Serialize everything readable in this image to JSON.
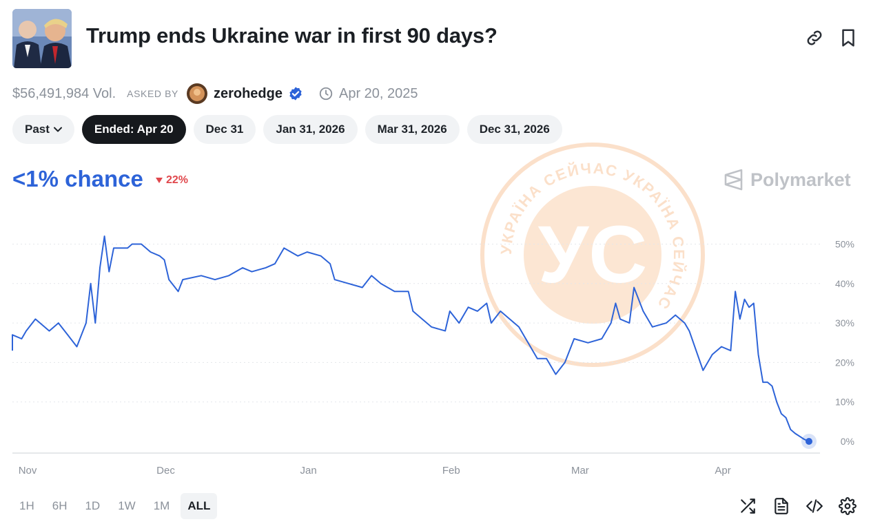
{
  "market": {
    "title": "Trump ends Ukraine war in first 90 days?",
    "volume": "$56,491,984 Vol.",
    "asked_by_label": "ASKED BY",
    "author": "zerohedge",
    "end_date": "Apr 20, 2025"
  },
  "outcome_pills": [
    {
      "label": "Past",
      "active": false
    },
    {
      "label": "Ended: Apr 20",
      "active": true
    },
    {
      "label": "Dec 31",
      "active": false
    },
    {
      "label": "Jan 31, 2026",
      "active": false
    },
    {
      "label": "Mar 31, 2026",
      "active": false
    },
    {
      "label": "Dec 31, 2026",
      "active": false
    }
  ],
  "chance_text": "<1% chance",
  "change_text": "22%",
  "brand": "Polymarket",
  "watermark": {
    "letters": "УС",
    "ring_text": "УКРАЇНА СЕЙЧАС УКРАЇНА СЕЙЧАС "
  },
  "time_ranges": [
    {
      "label": "1H",
      "active": false
    },
    {
      "label": "6H",
      "active": false
    },
    {
      "label": "1D",
      "active": false
    },
    {
      "label": "1W",
      "active": false
    },
    {
      "label": "1M",
      "active": false
    },
    {
      "label": "ALL",
      "active": true
    }
  ],
  "colors": {
    "line": "#2d63d8",
    "accent": "#2d63d8",
    "down": "#e0474c",
    "watermark": "#f5a05c"
  },
  "chart_data": {
    "type": "line",
    "title": "",
    "xlabel": "",
    "ylabel": "",
    "x_tick_labels": [
      "Nov",
      "Dec",
      "Jan",
      "Feb",
      "Mar",
      "Apr"
    ],
    "x_range": [
      "2024-10-29",
      "2025-04-20"
    ],
    "y_tick_labels": [
      "50%",
      "40%",
      "30%",
      "20%",
      "10%",
      "0%"
    ],
    "y_ticks": [
      50,
      40,
      30,
      20,
      10,
      0
    ],
    "ylim": [
      0,
      53
    ],
    "grid": true,
    "series": [
      {
        "name": "",
        "points": [
          [
            "2024-10-29",
            23
          ],
          [
            "2024-10-29",
            27
          ],
          [
            "2024-10-31",
            26
          ],
          [
            "2024-11-01",
            28
          ],
          [
            "2024-11-03",
            31
          ],
          [
            "2024-11-04",
            30
          ],
          [
            "2024-11-06",
            28
          ],
          [
            "2024-11-08",
            30
          ],
          [
            "2024-11-10",
            27
          ],
          [
            "2024-11-12",
            24
          ],
          [
            "2024-11-14",
            30
          ],
          [
            "2024-11-15",
            40
          ],
          [
            "2024-11-16",
            30
          ],
          [
            "2024-11-17",
            44
          ],
          [
            "2024-11-18",
            52
          ],
          [
            "2024-11-19",
            43
          ],
          [
            "2024-11-20",
            49
          ],
          [
            "2024-11-23",
            49
          ],
          [
            "2024-11-24",
            50
          ],
          [
            "2024-11-26",
            50
          ],
          [
            "2024-11-28",
            48
          ],
          [
            "2024-11-30",
            47
          ],
          [
            "2024-12-01",
            46
          ],
          [
            "2024-12-02",
            41
          ],
          [
            "2024-12-04",
            38
          ],
          [
            "2024-12-05",
            41
          ],
          [
            "2024-12-09",
            42
          ],
          [
            "2024-12-12",
            41
          ],
          [
            "2024-12-15",
            42
          ],
          [
            "2024-12-18",
            44
          ],
          [
            "2024-12-20",
            43
          ],
          [
            "2024-12-23",
            44
          ],
          [
            "2024-12-25",
            45
          ],
          [
            "2024-12-27",
            49
          ],
          [
            "2024-12-30",
            47
          ],
          [
            "2025-01-01",
            48
          ],
          [
            "2025-01-04",
            47
          ],
          [
            "2025-01-06",
            45
          ],
          [
            "2025-01-07",
            41
          ],
          [
            "2025-01-10",
            40
          ],
          [
            "2025-01-13",
            39
          ],
          [
            "2025-01-15",
            42
          ],
          [
            "2025-01-17",
            40
          ],
          [
            "2025-01-20",
            38
          ],
          [
            "2025-01-23",
            38
          ],
          [
            "2025-01-24",
            33
          ],
          [
            "2025-01-26",
            31
          ],
          [
            "2025-01-28",
            29
          ],
          [
            "2025-01-31",
            28
          ],
          [
            "2025-02-01",
            33
          ],
          [
            "2025-02-03",
            30
          ],
          [
            "2025-02-05",
            34
          ],
          [
            "2025-02-07",
            33
          ],
          [
            "2025-02-09",
            35
          ],
          [
            "2025-02-10",
            30
          ],
          [
            "2025-02-12",
            33
          ],
          [
            "2025-02-14",
            31
          ],
          [
            "2025-02-16",
            29
          ],
          [
            "2025-02-18",
            25
          ],
          [
            "2025-02-20",
            21
          ],
          [
            "2025-02-22",
            21
          ],
          [
            "2025-02-24",
            17
          ],
          [
            "2025-02-26",
            20
          ],
          [
            "2025-02-28",
            26
          ],
          [
            "2025-03-03",
            25
          ],
          [
            "2025-03-06",
            26
          ],
          [
            "2025-03-08",
            30
          ],
          [
            "2025-03-09",
            35
          ],
          [
            "2025-03-10",
            31
          ],
          [
            "2025-03-12",
            30
          ],
          [
            "2025-03-13",
            39
          ],
          [
            "2025-03-15",
            33
          ],
          [
            "2025-03-17",
            29
          ],
          [
            "2025-03-20",
            30
          ],
          [
            "2025-03-22",
            32
          ],
          [
            "2025-03-24",
            30
          ],
          [
            "2025-03-25",
            28
          ],
          [
            "2025-03-28",
            18
          ],
          [
            "2025-03-30",
            22
          ],
          [
            "2025-04-01",
            24
          ],
          [
            "2025-04-03",
            23
          ],
          [
            "2025-04-04",
            38
          ],
          [
            "2025-04-05",
            31
          ],
          [
            "2025-04-06",
            36
          ],
          [
            "2025-04-07",
            34
          ],
          [
            "2025-04-08",
            35
          ],
          [
            "2025-04-09",
            22
          ],
          [
            "2025-04-10",
            15
          ],
          [
            "2025-04-11",
            15
          ],
          [
            "2025-04-12",
            14
          ],
          [
            "2025-04-13",
            10
          ],
          [
            "2025-04-14",
            7
          ],
          [
            "2025-04-15",
            6
          ],
          [
            "2025-04-16",
            3
          ],
          [
            "2025-04-17",
            2
          ],
          [
            "2025-04-19",
            0.5
          ],
          [
            "2025-04-20",
            0
          ]
        ]
      }
    ]
  }
}
